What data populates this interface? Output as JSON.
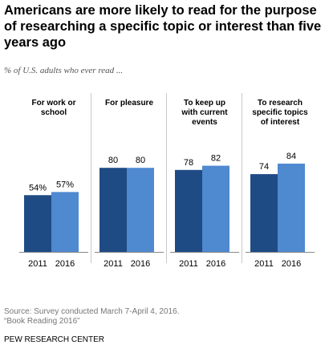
{
  "title": "Americans are more likely to read for the purpose of researching  a specific topic or interest than five years ago",
  "subtitle": "% of U.S. adults who ever read ...",
  "source_line1": "Source: Survey conducted March 7-April 4, 2016.",
  "source_line2": "“Book Reading 2016”",
  "brand": "PEW RESEARCH CENTER",
  "colors": {
    "2011": "#1f4b84",
    "2016": "#4f89d0",
    "divider": "#c8c8c8",
    "baseline": "#888888"
  },
  "chart_data": {
    "type": "bar",
    "title": "",
    "xlabel": "",
    "ylabel": "",
    "ylim": [
      0,
      100
    ],
    "series_names": [
      "2011",
      "2016"
    ],
    "groups": [
      {
        "label_lines": [
          "For work or",
          "school"
        ],
        "values": [
          54,
          57
        ],
        "labels": [
          "54%",
          "57%"
        ]
      },
      {
        "label_lines": [
          "For pleasure"
        ],
        "values": [
          80,
          80
        ],
        "labels": [
          "80",
          "80"
        ]
      },
      {
        "label_lines": [
          "To keep up",
          "with current",
          "events"
        ],
        "values": [
          78,
          82
        ],
        "labels": [
          "78",
          "82"
        ]
      },
      {
        "label_lines": [
          "To research",
          "specific topics",
          "of interest"
        ],
        "values": [
          74,
          84
        ],
        "labels": [
          "74",
          "84"
        ]
      }
    ],
    "tick_labels": [
      "2011",
      "2016"
    ]
  }
}
